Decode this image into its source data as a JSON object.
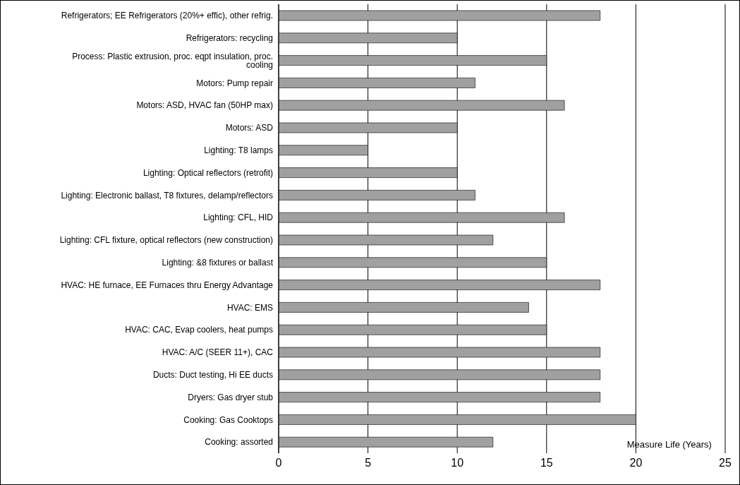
{
  "chart_data": {
    "type": "bar",
    "orientation": "horizontal",
    "xlabel": "Measure Life (Years)",
    "categories": [
      "Refrigerators; EE Refrigerators (20%+ effic), other refrig.",
      "Refrigerators: recycling",
      "Process: Plastic extrusion, proc. eqpt insulation, proc. cooling",
      "Motors: Pump repair",
      "Motors: ASD, HVAC fan (50HP max)",
      "Motors:  ASD",
      "Lighting: T8 lamps",
      "Lighting: Optical reflectors (retrofit)",
      "Lighting: Electronic ballast, T8 fixtures, delamp/reflectors",
      "Lighting: CFL, HID",
      "Lighting: CFL fixture, optical reflectors (new construction)",
      "Lighting: &8 fixtures or ballast",
      "HVAC: HE furnace, EE Furnaces thru Energy Advantage",
      "HVAC: EMS",
      "HVAC: CAC, Evap coolers, heat pumps",
      "HVAC:  A/C (SEER 11+), CAC",
      "Ducts: Duct testing, Hi EE ducts",
      "Dryers: Gas dryer stub",
      "Cooking: Gas Cooktops",
      "Cooking: assorted"
    ],
    "values": [
      18,
      10,
      15,
      11,
      16,
      10,
      5,
      10,
      11,
      16,
      12,
      15,
      18,
      14,
      15,
      18,
      18,
      18,
      20,
      12
    ],
    "color": "#a0a0a0",
    "xlim": [
      0,
      25
    ],
    "xticks": [
      0,
      5,
      10,
      15,
      20,
      25
    ],
    "grid": "x",
    "legend": false
  }
}
